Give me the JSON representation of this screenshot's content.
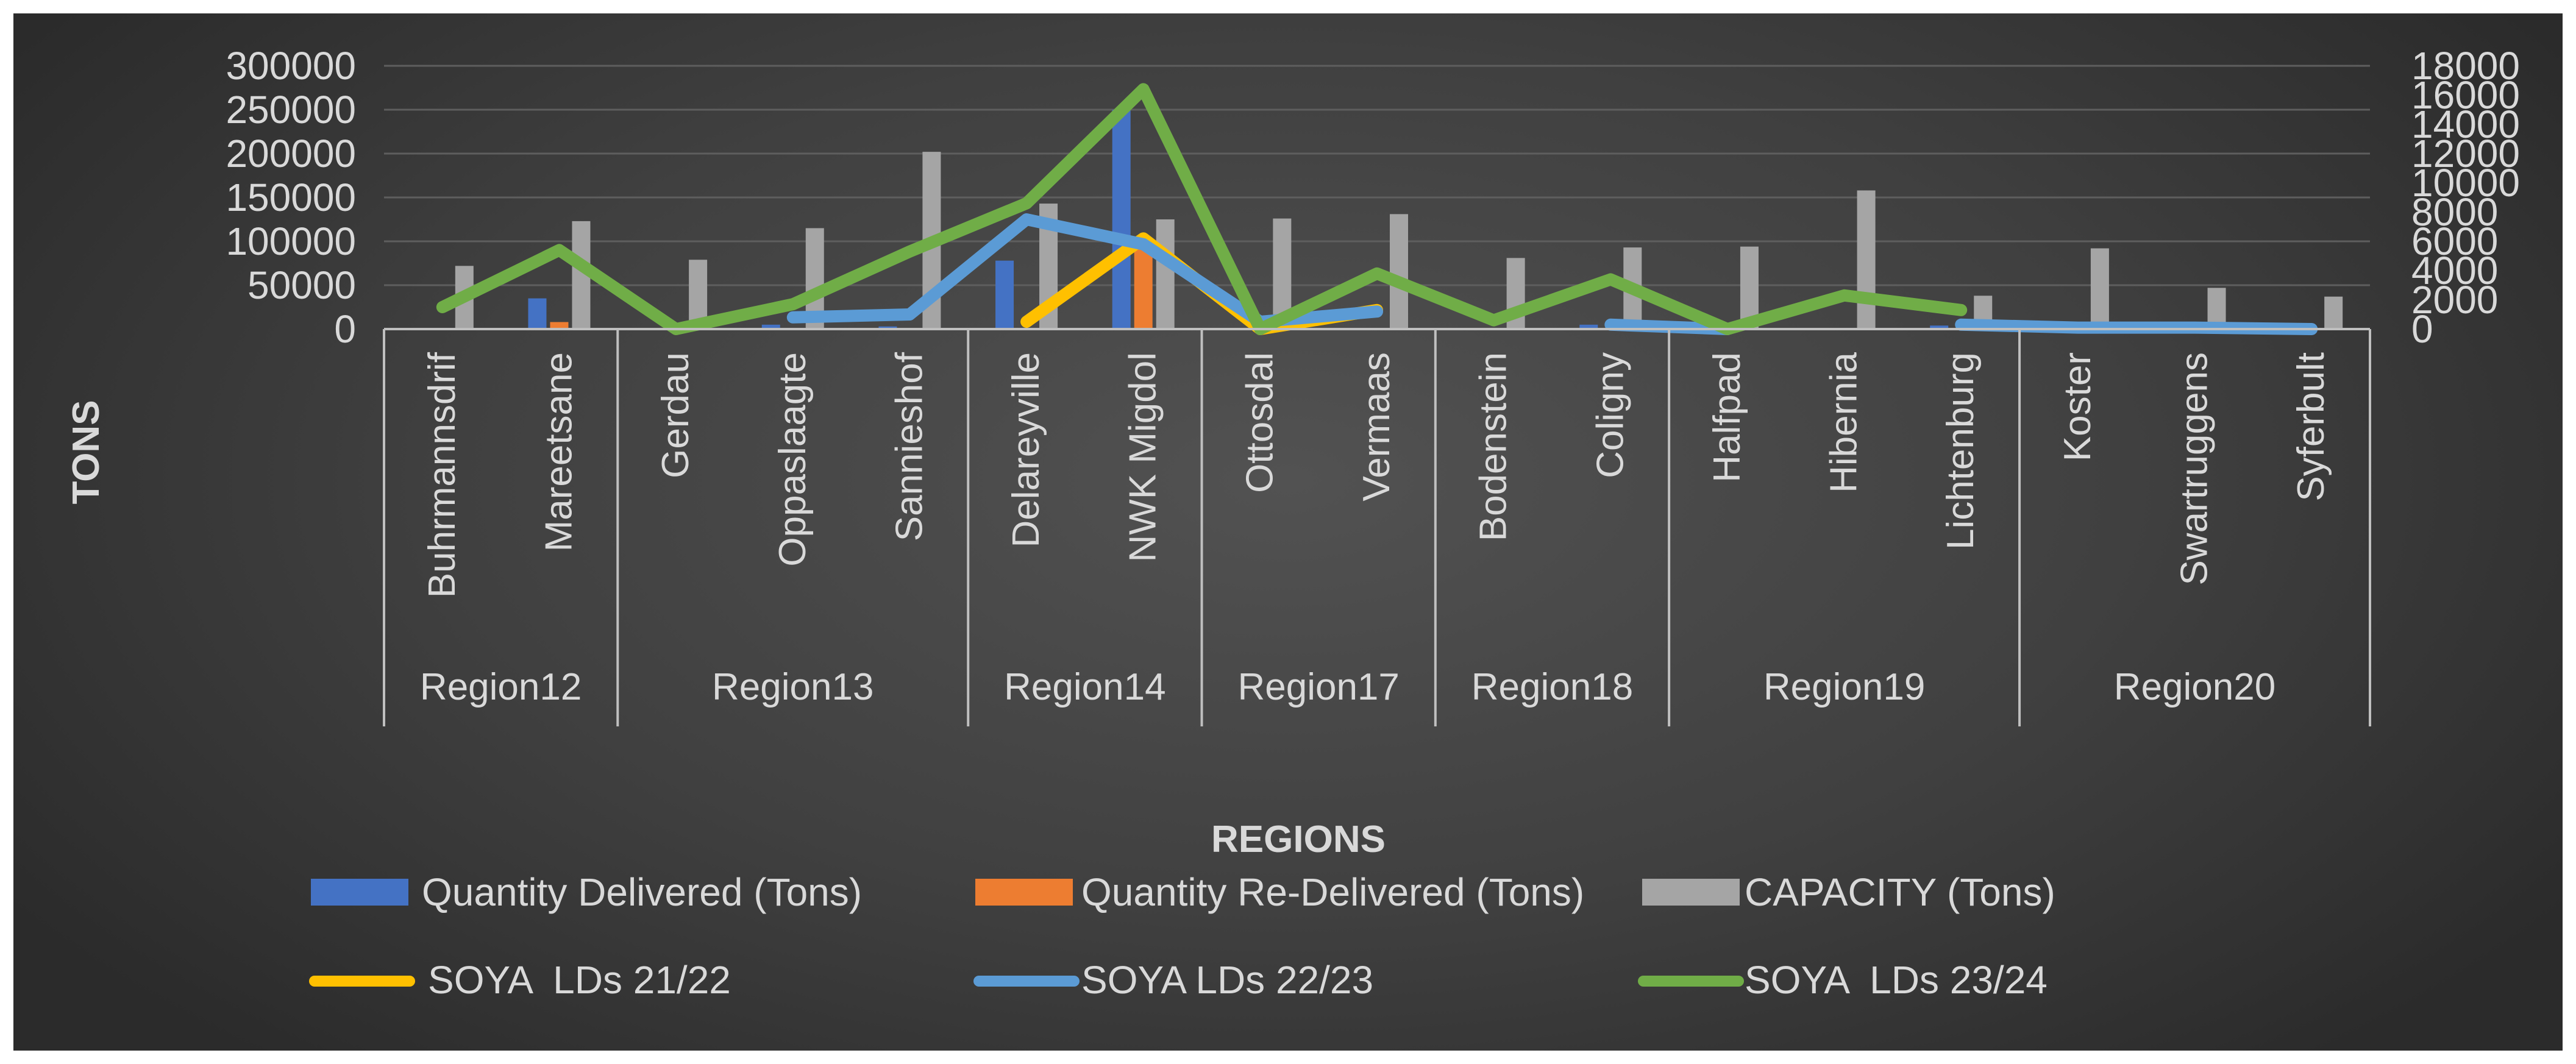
{
  "chart_data": {
    "type": "bar",
    "title": "",
    "xlabel": "REGIONS",
    "ylabel": "TONS",
    "ylim": [
      0,
      300000
    ],
    "y_ticks": [
      "0",
      "50000",
      "100000",
      "150000",
      "200000",
      "250000",
      "300000"
    ],
    "y2lim": [
      0,
      18000
    ],
    "y2_ticks": [
      "0",
      "2000",
      "4000",
      "6000",
      "8000",
      "10000",
      "12000",
      "14000",
      "16000",
      "18000"
    ],
    "categories": [
      "Buhrmannsdrif",
      "Mareetsane",
      "Gerdau",
      "Oppaslaagte",
      "Sannieshof",
      "Delareyville",
      "NWK Migdol",
      "Ottosdal",
      "Vermaas",
      "Bodenstein",
      "Coligny",
      "Halfpad",
      "Hibernia",
      "Lichtenburg",
      "Koster",
      "Swartruggens",
      "Syferbult"
    ],
    "regions": [
      {
        "name": "Region12",
        "count": 2
      },
      {
        "name": "Region13",
        "count": 3
      },
      {
        "name": "Region14",
        "count": 2
      },
      {
        "name": "Region17",
        "count": 2
      },
      {
        "name": "Region18",
        "count": 2
      },
      {
        "name": "Region19",
        "count": 3
      },
      {
        "name": "Region20",
        "count": 3
      }
    ],
    "bar_series": [
      {
        "name": "Quantity Delivered (Tons)",
        "color": "#4472c4",
        "axis": "primary",
        "values": [
          0,
          35000,
          0,
          5000,
          3000,
          78000,
          250000,
          1000,
          500,
          500,
          5000,
          0,
          1000,
          4000,
          0,
          0,
          0
        ]
      },
      {
        "name": "Quantity Re-Delivered (Tons)",
        "color": "#ed7d31",
        "axis": "primary",
        "values": [
          0,
          8000,
          0,
          0,
          0,
          0,
          95000,
          0,
          0,
          0,
          0,
          0,
          0,
          0,
          0,
          0,
          0
        ]
      },
      {
        "name": "CAPACITY (Tons)",
        "color": "#a5a5a5",
        "axis": "primary",
        "values": [
          72000,
          123000,
          79000,
          115000,
          202000,
          143000,
          125000,
          126000,
          131000,
          81000,
          93000,
          94000,
          158000,
          38000,
          92000,
          47000,
          37000
        ]
      }
    ],
    "line_series": [
      {
        "name": "SOYA  LDs 21/22",
        "color": "#ffc000",
        "axis": "secondary",
        "values": [
          null,
          null,
          null,
          null,
          null,
          500,
          6200,
          0,
          1300,
          null,
          null,
          null,
          null,
          null,
          null,
          null,
          null
        ]
      },
      {
        "name": "SOYA LDs 22/23",
        "color": "#5b9bd5",
        "axis": "secondary",
        "values": [
          null,
          null,
          null,
          800,
          1000,
          7500,
          5800,
          500,
          1200,
          null,
          300,
          0,
          null,
          300,
          100,
          100,
          0
        ]
      },
      {
        "name": "SOYA  LDs 23/24",
        "color": "#70ad47",
        "axis": "secondary",
        "values": [
          1500,
          5400,
          0,
          1700,
          5300,
          8600,
          16400,
          0,
          3800,
          600,
          3400,
          0,
          2300,
          1300,
          null,
          null,
          null
        ]
      }
    ]
  }
}
